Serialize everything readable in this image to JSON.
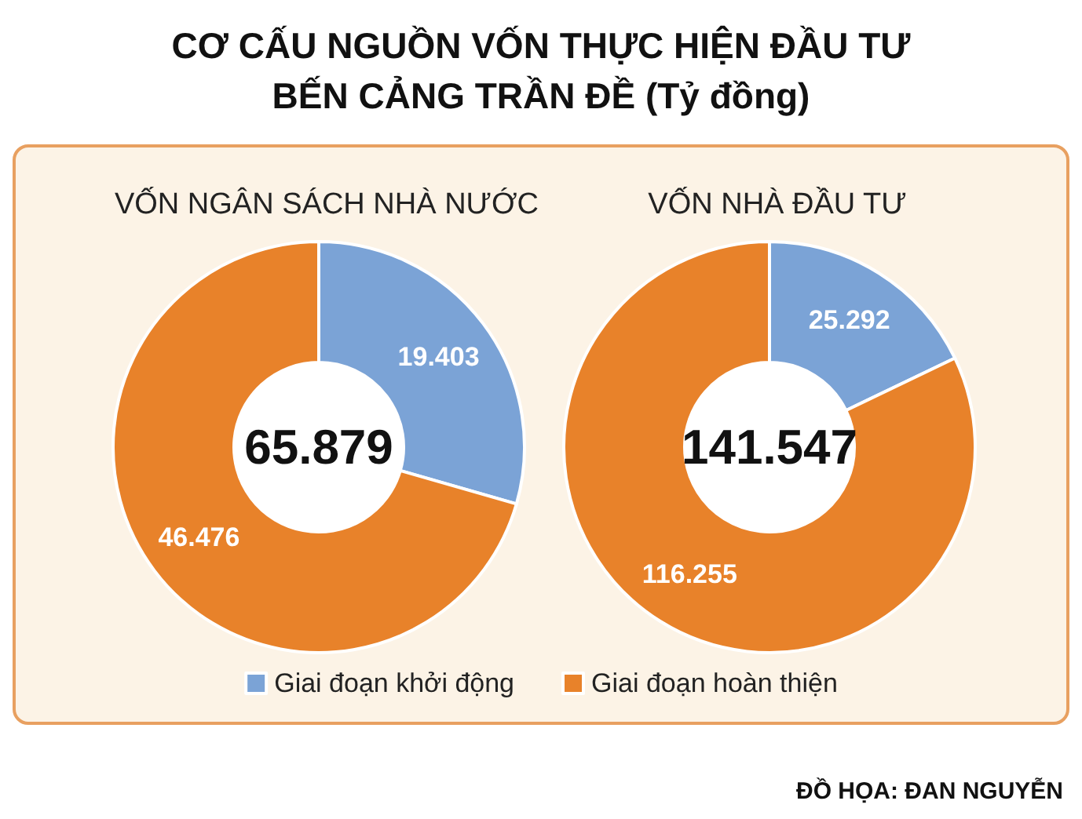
{
  "chart_data": {
    "type": "donut",
    "title": "CƠ CẤU NGUỒN VỐN THỰC HIỆN ĐẦU TƯ\nBẾN CẢNG TRẦN ĐỀ (Tỷ đồng)",
    "categories": [
      "Giai đoạn khởi động",
      "Giai đoạn hoàn thiện"
    ],
    "colors": [
      "#7ba3d6",
      "#e8822a"
    ],
    "legend": "bottom",
    "series": [
      {
        "name": "VỐN NGÂN SÁCH NHÀ NƯỚC",
        "values": [
          19403,
          46476
        ],
        "value_labels": [
          "19.403",
          "46.476"
        ]
      },
      {
        "name": "VỐN NHÀ ĐẦU TƯ",
        "values": [
          25292,
          116255
        ],
        "value_labels": [
          "25.292",
          "116.255"
        ]
      }
    ],
    "annotations": [
      "65.879",
      "141.547",
      "ĐỒ HỌA: ĐAN NGUYỄN"
    ]
  }
}
